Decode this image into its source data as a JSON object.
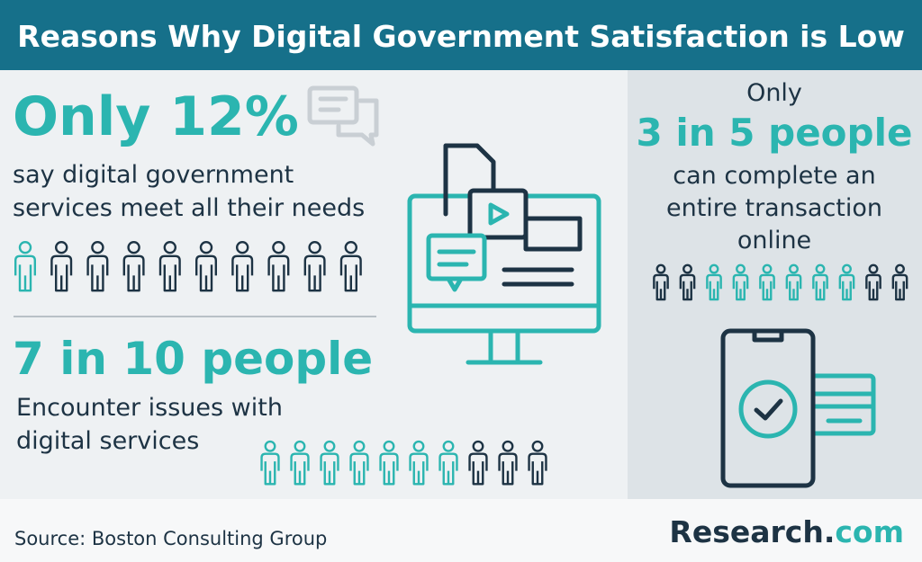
{
  "header": {
    "title": "Reasons Why Digital Government Satisfaction is Low"
  },
  "stats": [
    {
      "headline": "Only 12%",
      "lines": [
        "say digital government",
        "services meet all their needs"
      ]
    },
    {
      "headline": "7 in 10 people",
      "lines": [
        "Encounter issues with",
        "digital services"
      ]
    },
    {
      "intro": "Only",
      "headline": "3 in 5 people",
      "lines": [
        "can complete an",
        "entire transaction",
        "online"
      ]
    }
  ],
  "footer": {
    "source": "Source: Boston Consulting Group",
    "logo": {
      "main": "Research.",
      "suffix": "com"
    }
  }
}
